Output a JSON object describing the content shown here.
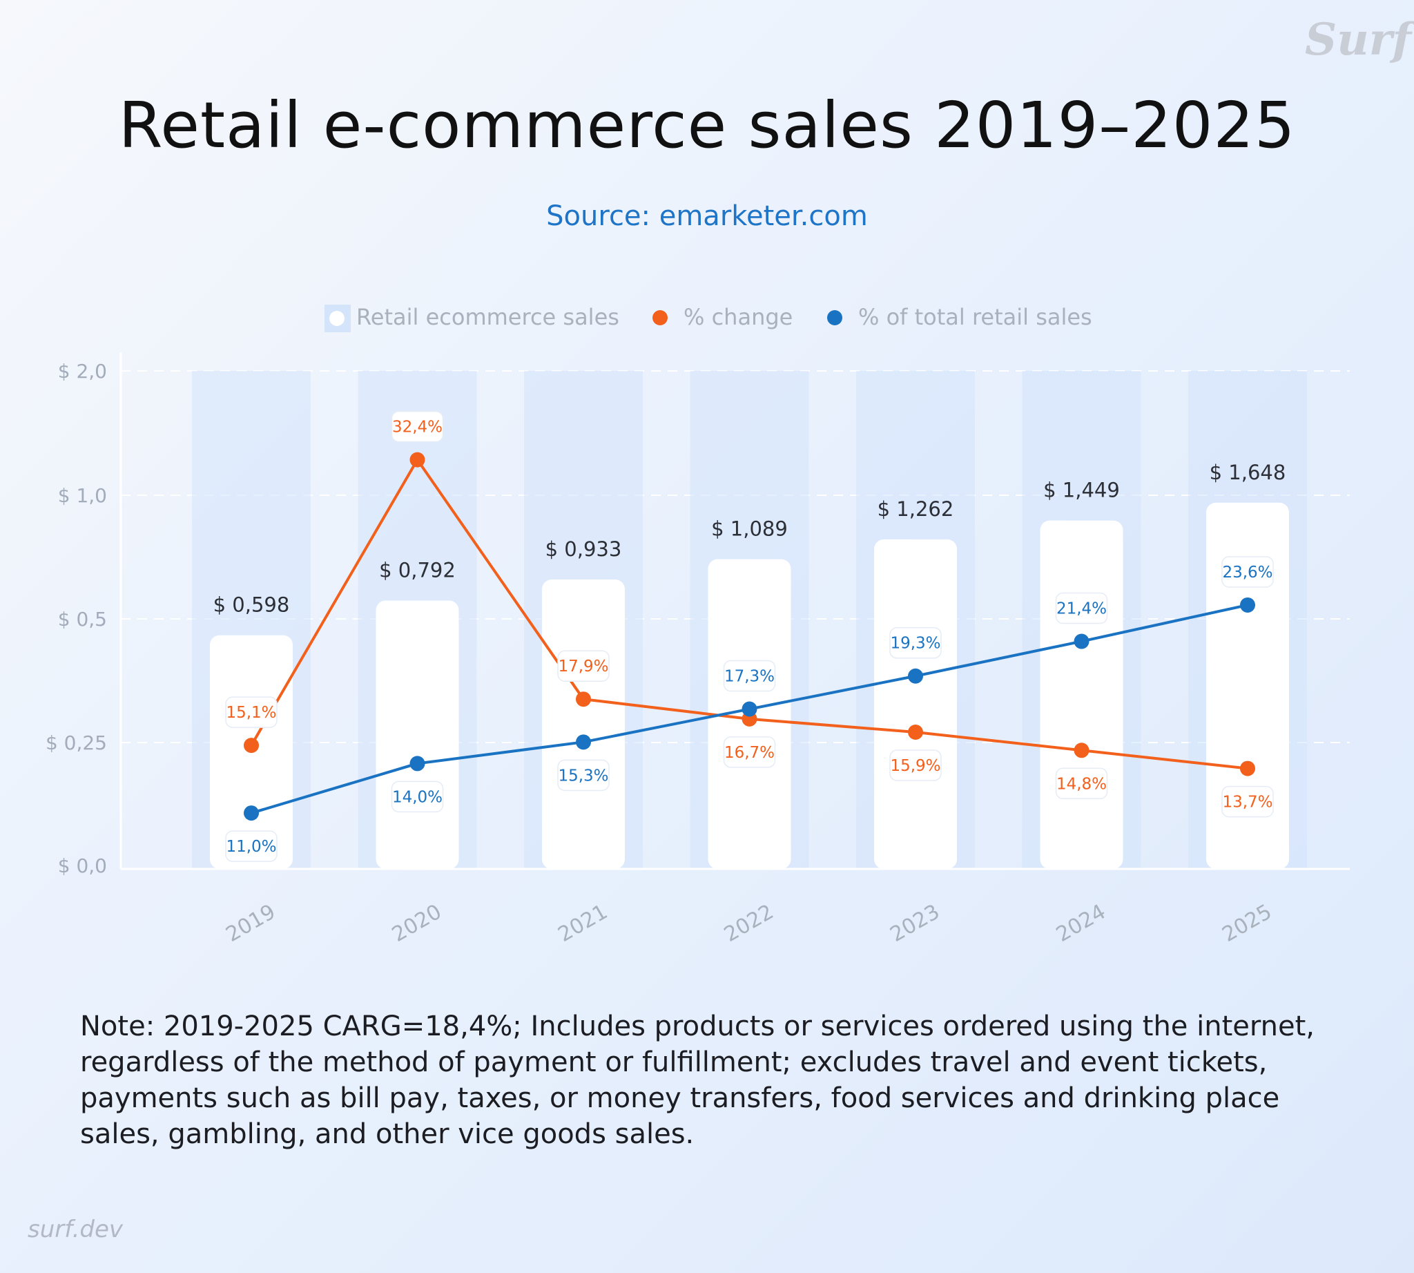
{
  "title": "Retail e-commerce sales 2019–2025",
  "source": "Source: emarketer.com",
  "watermark": "Surf",
  "note": "Note: 2019-2025 CARG=18,4%; Includes products or services ordered using the internet, regardless of the method of payment or fulfillment; excludes travel and event tickets, payments such as bill pay, taxes, or money transfers, food services and drinking place sales, gambling, and other vice goods sales.",
  "footer": "surf.dev",
  "colors": {
    "change": "#f2601c",
    "share": "#1a73c2",
    "bar": "#ffffff",
    "band": "#d3e4fb"
  },
  "chart_data": {
    "type": "bar",
    "categories": [
      "2019",
      "2020",
      "2021",
      "2022",
      "2023",
      "2024",
      "2025"
    ],
    "y_ticks": [
      "$ 0,0",
      "$ 0,25",
      "$ 0,5",
      "$ 1,0",
      "$ 2,0"
    ],
    "legend": [
      "Retail ecommerce sales",
      "% change",
      "% of total retail sales"
    ],
    "legend_placement": "top-center",
    "grid": true,
    "series": [
      {
        "name": "Retail ecommerce sales",
        "kind": "bar",
        "values": [
          0.598,
          0.792,
          0.933,
          1.089,
          1.262,
          1.449,
          1.648
        ],
        "labels": [
          "$ 0,598",
          "$ 0,792",
          "$ 0,933",
          "$ 1,089",
          "$ 1,262",
          "$ 1,449",
          "$ 1,648"
        ]
      },
      {
        "name": "% change",
        "kind": "line",
        "values": [
          15.1,
          32.4,
          17.9,
          16.7,
          15.9,
          14.8,
          13.7
        ],
        "labels": [
          "15,1%",
          "32,4%",
          "17,9%",
          "16,7%",
          "15,9%",
          "14,8%",
          "13,7%"
        ]
      },
      {
        "name": "% of total retail sales",
        "kind": "line",
        "values": [
          11.0,
          14.0,
          15.3,
          17.3,
          19.3,
          21.4,
          23.6
        ],
        "labels": [
          "11,0%",
          "14,0%",
          "15,3%",
          "17,3%",
          "19,3%",
          "21,4%",
          "23,6%"
        ]
      }
    ]
  }
}
